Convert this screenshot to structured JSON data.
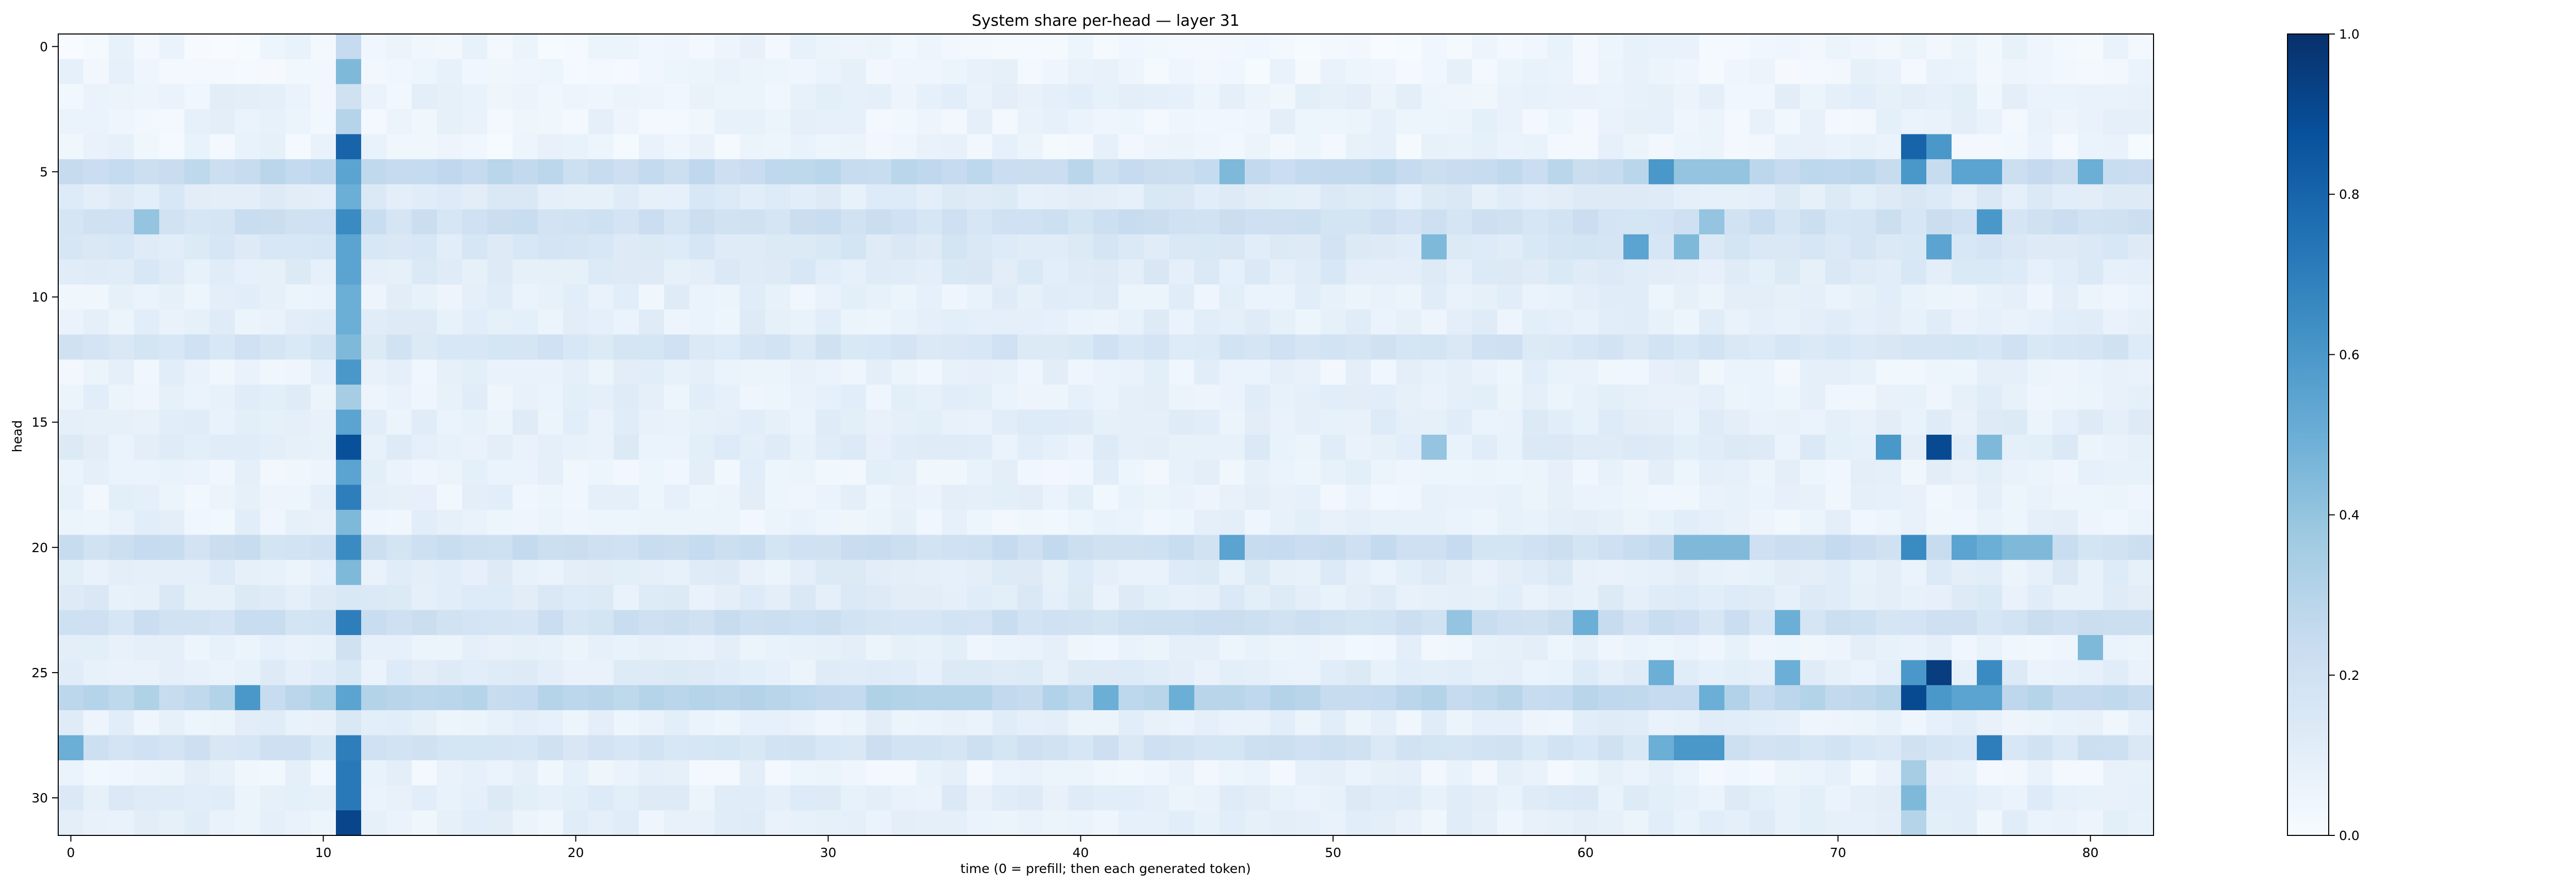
{
  "chart_data": {
    "type": "heatmap",
    "title": "System share per-head — layer 31",
    "xlabel": "time (0 = prefill; then each generated token)",
    "ylabel": "head",
    "x_ticks": [
      0,
      10,
      20,
      30,
      40,
      50,
      60,
      70,
      80
    ],
    "y_ticks": [
      0,
      5,
      10,
      15,
      20,
      25,
      30
    ],
    "x_range": [
      0,
      82
    ],
    "y_range": [
      0,
      31
    ],
    "colorbar": {
      "range": [
        0.0,
        1.0
      ],
      "ticks": [
        "0.0",
        "0.2",
        "0.4",
        "0.6",
        "0.8",
        "1.0"
      ]
    },
    "colors": {
      "low": "#f7fbff",
      "high": "#08306b"
    },
    "colormap": "Blues",
    "n_time": 83,
    "n_heads": 32,
    "baseline": [
      0.04,
      0.05,
      0.07,
      0.06,
      0.05,
      0.25,
      0.12,
      0.2,
      0.15,
      0.12,
      0.08,
      0.09,
      0.17,
      0.07,
      0.08,
      0.1,
      0.1,
      0.07,
      0.07,
      0.07,
      0.22,
      0.1,
      0.11,
      0.2,
      0.07,
      0.1,
      0.28,
      0.08,
      0.18,
      0.06,
      0.1,
      0.08
    ],
    "column11": [
      0.25,
      0.45,
      0.2,
      0.3,
      0.8,
      0.55,
      0.5,
      0.65,
      0.55,
      0.55,
      0.5,
      0.5,
      0.45,
      0.6,
      0.35,
      0.55,
      0.88,
      0.55,
      0.7,
      0.45,
      0.65,
      0.45,
      0.15,
      0.7,
      0.2,
      0.15,
      0.55,
      0.15,
      0.7,
      0.72,
      0.72,
      0.92
    ],
    "highlights": [
      [
        4,
        73,
        0.8
      ],
      [
        4,
        74,
        0.6
      ],
      [
        5,
        63,
        0.6
      ],
      [
        5,
        64,
        0.4
      ],
      [
        5,
        65,
        0.4
      ],
      [
        5,
        66,
        0.4
      ],
      [
        5,
        73,
        0.6
      ],
      [
        5,
        75,
        0.55
      ],
      [
        5,
        76,
        0.55
      ],
      [
        5,
        80,
        0.5
      ],
      [
        5,
        46,
        0.45
      ],
      [
        7,
        76,
        0.6
      ],
      [
        7,
        3,
        0.4
      ],
      [
        7,
        65,
        0.4
      ],
      [
        8,
        62,
        0.55
      ],
      [
        8,
        74,
        0.55
      ],
      [
        8,
        54,
        0.45
      ],
      [
        8,
        64,
        0.45
      ],
      [
        16,
        74,
        0.9
      ],
      [
        16,
        72,
        0.6
      ],
      [
        16,
        76,
        0.45
      ],
      [
        16,
        54,
        0.4
      ],
      [
        20,
        73,
        0.65
      ],
      [
        20,
        46,
        0.55
      ],
      [
        20,
        75,
        0.55
      ],
      [
        20,
        76,
        0.5
      ],
      [
        20,
        77,
        0.45
      ],
      [
        20,
        78,
        0.45
      ],
      [
        20,
        64,
        0.45
      ],
      [
        20,
        65,
        0.45
      ],
      [
        20,
        66,
        0.45
      ],
      [
        23,
        68,
        0.5
      ],
      [
        23,
        55,
        0.4
      ],
      [
        23,
        60,
        0.5
      ],
      [
        24,
        80,
        0.45
      ],
      [
        25,
        74,
        0.95
      ],
      [
        25,
        73,
        0.6
      ],
      [
        25,
        76,
        0.65
      ],
      [
        25,
        63,
        0.5
      ],
      [
        25,
        68,
        0.5
      ],
      [
        26,
        73,
        0.9
      ],
      [
        26,
        74,
        0.6
      ],
      [
        26,
        75,
        0.55
      ],
      [
        26,
        76,
        0.55
      ],
      [
        26,
        7,
        0.6
      ],
      [
        26,
        41,
        0.5
      ],
      [
        26,
        44,
        0.5
      ],
      [
        26,
        65,
        0.5
      ],
      [
        28,
        76,
        0.7
      ],
      [
        28,
        64,
        0.6
      ],
      [
        28,
        65,
        0.6
      ],
      [
        28,
        63,
        0.5
      ],
      [
        28,
        0,
        0.5
      ],
      [
        29,
        73,
        0.35
      ],
      [
        30,
        73,
        0.45
      ],
      [
        31,
        73,
        0.3
      ]
    ]
  }
}
